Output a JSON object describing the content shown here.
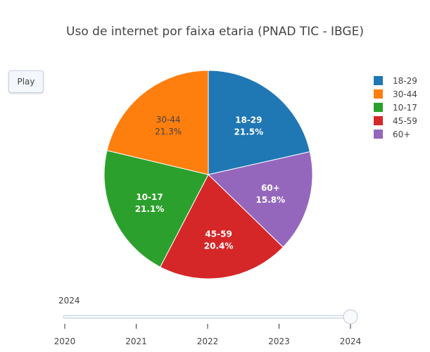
{
  "controls": {
    "play_label": "Play"
  },
  "slider": {
    "current_value_label": "2024",
    "steps": [
      "2020",
      "2021",
      "2022",
      "2023",
      "2024"
    ],
    "selected": "2024"
  },
  "chart_data": {
    "type": "pie",
    "title": "Uso de internet por faixa etaria (PNAD TIC - IBGE)",
    "slices": [
      {
        "label": "18-29",
        "value": 21.5,
        "display": "21.5%",
        "color": "#1f77b4",
        "text_color": "#ffffff"
      },
      {
        "label": "60+",
        "value": 15.8,
        "display": "15.8%",
        "color": "#9467bd",
        "text_color": "#ffffff"
      },
      {
        "label": "45-59",
        "value": 20.4,
        "display": "20.4%",
        "color": "#d62728",
        "text_color": "#ffffff"
      },
      {
        "label": "10-17",
        "value": 21.1,
        "display": "21.1%",
        "color": "#2ca02c",
        "text_color": "#ffffff"
      },
      {
        "label": "30-44",
        "value": 21.3,
        "display": "21.3%",
        "color": "#ff7f0e",
        "text_color": "#444444"
      }
    ],
    "legend": {
      "placement": "right",
      "order": [
        "18-29",
        "30-44",
        "10-17",
        "45-59",
        "60+"
      ]
    }
  }
}
